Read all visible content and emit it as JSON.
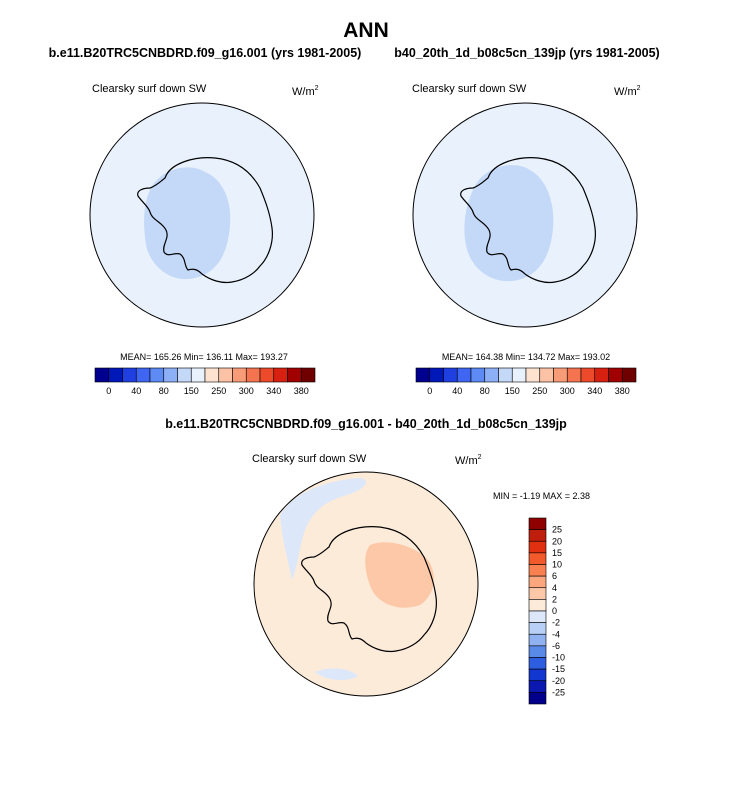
{
  "page": {
    "title": "ANN",
    "case_a": "b.e11.B20TRC5CNBDRD.f09_g16.001 (yrs 1981-2005)",
    "case_b": "b40_20th_1d_b08c5cn_139jp (yrs 1981-2005)",
    "diff_title": "b.e11.B20TRC5CNBDRD.f09_g16.001 - b40_20th_1d_b08c5cn_139jp"
  },
  "chart_data": [
    {
      "type": "heatmap",
      "projection": "south-polar-stereographic",
      "variable": "Clearsky surf down SW",
      "units_base": "W/m",
      "units_exp": "2",
      "stats": "MEAN= 165.26  Min= 136.11  Max= 193.27",
      "mean": 165.26,
      "min": 136.11,
      "max": 193.27,
      "colorbar_labels": [
        "0",
        "40",
        "80",
        "150",
        "250",
        "300",
        "340",
        "380"
      ],
      "colorbar_levels": [
        0,
        20,
        40,
        60,
        80,
        100,
        150,
        200,
        250,
        275,
        300,
        320,
        340,
        360,
        380
      ],
      "colorbar_colors": [
        "#00008f",
        "#0018b8",
        "#1f3fe0",
        "#3e66f2",
        "#5d8af5",
        "#8caff5",
        "#c4d8f8",
        "#e8f1fc",
        "#fde3cf",
        "#fbc2a6",
        "#f89c78",
        "#f47450",
        "#ec4a2a",
        "#d82010",
        "#a00000",
        "#700000"
      ]
    },
    {
      "type": "heatmap",
      "projection": "south-polar-stereographic",
      "variable": "Clearsky surf down SW",
      "units_base": "W/m",
      "units_exp": "2",
      "stats": "MEAN= 164.38  Min= 134.72  Max= 193.02",
      "mean": 164.38,
      "min": 134.72,
      "max": 193.02,
      "colorbar_labels": [
        "0",
        "40",
        "80",
        "150",
        "250",
        "300",
        "340",
        "380"
      ],
      "colorbar_levels": [
        0,
        20,
        40,
        60,
        80,
        100,
        150,
        200,
        250,
        275,
        300,
        320,
        340,
        360,
        380
      ],
      "colorbar_colors": [
        "#00008f",
        "#0018b8",
        "#1f3fe0",
        "#3e66f2",
        "#5d8af5",
        "#8caff5",
        "#c4d8f8",
        "#e8f1fc",
        "#fde3cf",
        "#fbc2a6",
        "#f89c78",
        "#f47450",
        "#ec4a2a",
        "#d82010",
        "#a00000",
        "#700000"
      ]
    },
    {
      "type": "heatmap",
      "projection": "south-polar-stereographic",
      "variable": "Clearsky surf down SW",
      "units_base": "W/m",
      "units_exp": "2",
      "stats": "MIN =  -1.19 MAX =   2.38",
      "min": -1.19,
      "max": 2.38,
      "colorbar_labels": [
        "25",
        "20",
        "15",
        "10",
        "6",
        "4",
        "2",
        "0",
        "-2",
        "-4",
        "-6",
        "-10",
        "-15",
        "-20",
        "-25"
      ],
      "colorbar_levels": [
        25,
        20,
        15,
        10,
        6,
        4,
        2,
        0,
        -2,
        -4,
        -6,
        -10,
        -15,
        -20,
        -25
      ],
      "colorbar_colors": [
        "#8f0000",
        "#c01e0c",
        "#e03010",
        "#f25a2c",
        "#f98050",
        "#fba67c",
        "#fcc8a8",
        "#fdebda",
        "#dce8fa",
        "#b8d0f5",
        "#90b2f0",
        "#5a8ae8",
        "#2e5ee0",
        "#1236d0",
        "#0a18b0",
        "#02008a"
      ]
    }
  ]
}
